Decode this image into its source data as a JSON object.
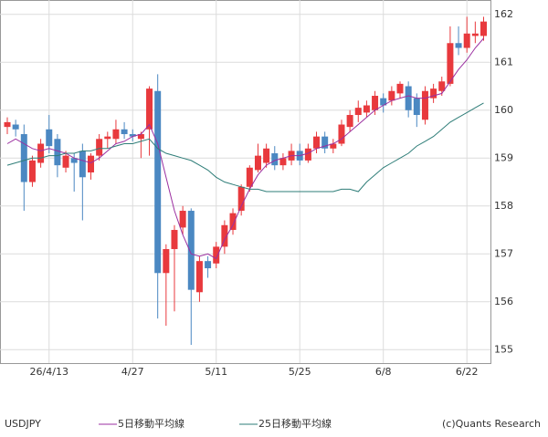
{
  "chart_data": {
    "type": "candlestick",
    "symbol": "USDJPY",
    "copyright": "(c)Quants Research",
    "categories": [
      null,
      null,
      null,
      null,
      null,
      "26/4/13",
      null,
      null,
      null,
      null,
      null,
      null,
      null,
      null,
      null,
      "4/27",
      null,
      null,
      null,
      null,
      null,
      null,
      null,
      null,
      null,
      "5/11",
      null,
      null,
      null,
      null,
      null,
      null,
      null,
      null,
      null,
      "5/25",
      null,
      null,
      null,
      null,
      null,
      null,
      null,
      null,
      null,
      "6/8",
      null,
      null,
      null,
      null,
      null,
      null,
      null,
      null,
      null,
      "6/22",
      null,
      null
    ],
    "open": [
      159.65,
      159.7,
      159.5,
      158.5,
      158.9,
      159.6,
      159.4,
      158.8,
      159.0,
      159.15,
      158.7,
      159.05,
      159.4,
      159.4,
      159.6,
      159.5,
      159.4,
      159.6,
      160.4,
      156.6,
      157.1,
      157.55,
      157.9,
      156.2,
      156.85,
      156.8,
      157.15,
      157.5,
      157.9,
      158.4,
      158.75,
      158.9,
      159.1,
      158.85,
      158.95,
      159.15,
      158.95,
      159.2,
      159.45,
      159.2,
      159.3,
      159.65,
      159.9,
      159.95,
      160.0,
      160.25,
      160.2,
      160.35,
      160.5,
      160.25,
      159.8,
      160.25,
      160.4,
      160.55,
      161.4,
      161.3,
      161.55,
      161.55
    ],
    "high": [
      159.85,
      159.8,
      159.7,
      159.05,
      159.4,
      159.9,
      159.5,
      159.15,
      159.1,
      159.3,
      159.1,
      159.5,
      159.55,
      159.8,
      159.75,
      159.6,
      159.55,
      160.5,
      160.75,
      157.2,
      157.6,
      158.0,
      157.95,
      156.95,
      156.95,
      157.25,
      157.7,
      157.95,
      158.45,
      158.85,
      159.3,
      159.3,
      159.25,
      159.1,
      159.3,
      159.3,
      159.3,
      159.55,
      159.55,
      159.4,
      159.8,
      160.0,
      160.2,
      160.2,
      160.4,
      160.35,
      160.5,
      160.6,
      160.6,
      160.35,
      160.5,
      160.55,
      160.7,
      161.75,
      161.75,
      161.95,
      161.85,
      161.95
    ],
    "low": [
      159.5,
      159.45,
      157.9,
      158.4,
      158.8,
      159.1,
      158.6,
      158.7,
      158.3,
      157.7,
      158.55,
      158.95,
      159.2,
      159.3,
      159.4,
      159.35,
      159.0,
      159.05,
      155.65,
      155.5,
      155.8,
      157.4,
      155.1,
      156.0,
      156.5,
      156.7,
      157.0,
      157.4,
      157.8,
      158.3,
      158.7,
      158.8,
      158.75,
      158.75,
      158.85,
      158.85,
      158.9,
      159.1,
      159.1,
      159.1,
      159.25,
      159.55,
      159.75,
      159.85,
      159.9,
      159.95,
      160.1,
      160.25,
      159.85,
      159.65,
      159.7,
      160.15,
      160.3,
      160.5,
      161.15,
      161.2,
      161.4,
      161.45
    ],
    "close": [
      159.75,
      159.6,
      158.5,
      158.95,
      159.3,
      159.25,
      158.85,
      159.05,
      158.9,
      158.6,
      159.05,
      159.4,
      159.45,
      159.6,
      159.5,
      159.45,
      159.5,
      160.45,
      156.6,
      157.1,
      157.5,
      157.9,
      156.25,
      156.85,
      156.7,
      157.15,
      157.6,
      157.85,
      158.4,
      158.8,
      159.05,
      159.2,
      158.85,
      159.0,
      159.15,
      158.95,
      159.2,
      159.45,
      159.2,
      159.3,
      159.7,
      159.9,
      160.05,
      160.1,
      160.3,
      160.1,
      160.4,
      160.55,
      160.0,
      159.9,
      160.4,
      160.45,
      160.6,
      161.4,
      161.3,
      161.6,
      161.6,
      161.85
    ],
    "up_color": "#e8393d",
    "down_color": "#4b88c2",
    "series": [
      {
        "name": "5日移動平均線",
        "color": "#9b2fa0",
        "values": [
          159.3,
          159.4,
          159.3,
          159.2,
          159.15,
          159.2,
          159.15,
          159.1,
          159.0,
          158.95,
          158.9,
          159.0,
          159.15,
          159.3,
          159.35,
          159.45,
          159.5,
          159.7,
          159.3,
          158.6,
          157.9,
          157.4,
          157.0,
          156.95,
          157.0,
          156.9,
          157.3,
          157.6,
          158.0,
          158.35,
          158.65,
          158.85,
          158.95,
          159.0,
          159.05,
          159.05,
          159.1,
          159.2,
          159.25,
          159.3,
          159.4,
          159.55,
          159.7,
          159.85,
          160.0,
          160.1,
          160.2,
          160.25,
          160.3,
          160.25,
          160.25,
          160.3,
          160.35,
          160.6,
          160.85,
          161.05,
          161.3,
          161.5
        ]
      },
      {
        "name": "25日移動平均線",
        "color": "#2e7d78",
        "values": [
          158.85,
          158.9,
          158.95,
          159.0,
          159.0,
          159.05,
          159.05,
          159.1,
          159.1,
          159.15,
          159.15,
          159.2,
          159.2,
          159.25,
          159.3,
          159.3,
          159.35,
          159.4,
          159.2,
          159.1,
          159.05,
          159.0,
          158.95,
          158.85,
          158.75,
          158.6,
          158.5,
          158.45,
          158.4,
          158.35,
          158.35,
          158.3,
          158.3,
          158.3,
          158.3,
          158.3,
          158.3,
          158.3,
          158.3,
          158.3,
          158.35,
          158.35,
          158.3,
          158.5,
          158.65,
          158.8,
          158.9,
          159.0,
          159.1,
          159.25,
          159.35,
          159.45,
          159.6,
          159.75,
          159.85,
          159.95,
          160.05,
          160.15
        ]
      }
    ],
    "ylim": [
      154.72,
      162.3
    ],
    "yticks": [
      155,
      156,
      157,
      158,
      159,
      160,
      161,
      162
    ],
    "grid": true
  }
}
